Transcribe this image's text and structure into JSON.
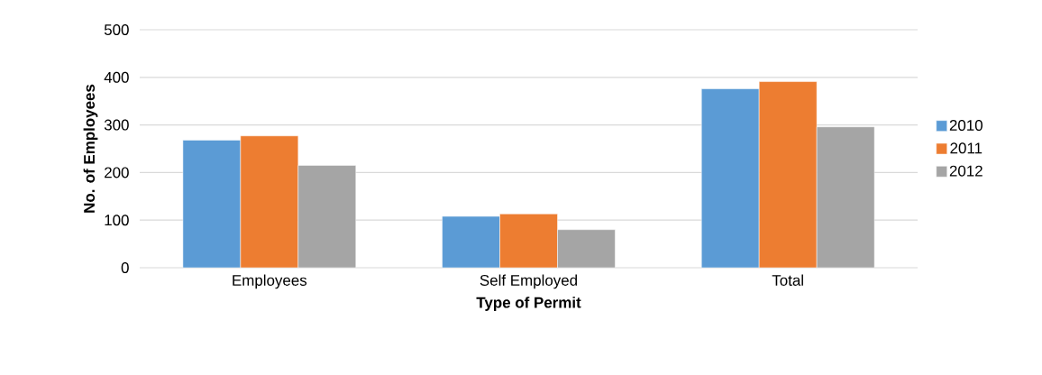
{
  "chart_data": {
    "type": "bar",
    "xlabel": "Type of Permit",
    "ylabel": "No. of Employees",
    "categories": [
      "Employees",
      "Self Employed",
      "Total"
    ],
    "series": [
      {
        "name": "2010",
        "color": "#5b9bd5",
        "values": [
          268,
          108,
          376
        ]
      },
      {
        "name": "2011",
        "color": "#ed7d31",
        "values": [
          277,
          113,
          391
        ]
      },
      {
        "name": "2012",
        "color": "#a5a5a5",
        "values": [
          215,
          80,
          296
        ]
      }
    ],
    "ylim": [
      0,
      500
    ],
    "yticks": [
      0,
      100,
      200,
      300,
      400,
      500
    ],
    "grid": "y",
    "legend": "right"
  }
}
